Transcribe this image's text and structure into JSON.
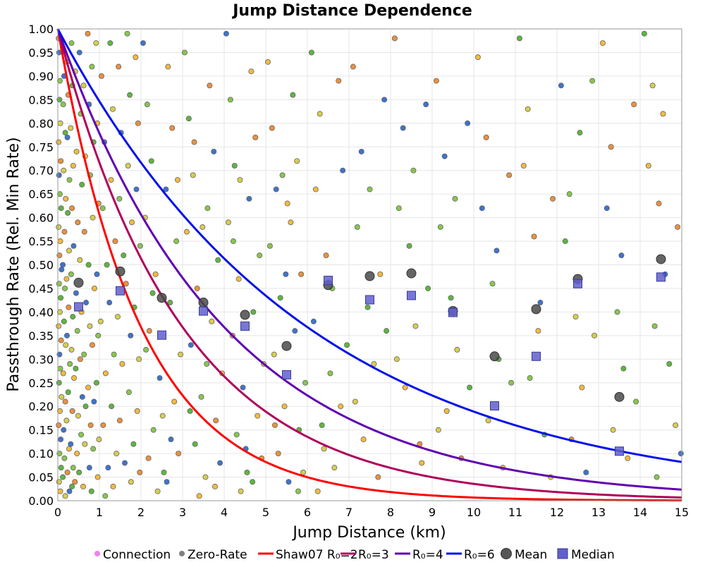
{
  "chart_data": {
    "type": "scatter",
    "title": "Jump Distance Dependence",
    "xlabel": "Jump Distance (km)",
    "ylabel": "Passthrough Rate (Rel. Min Rate)",
    "xlim": [
      0,
      15
    ],
    "ylim": [
      0,
      1
    ],
    "x_ticks": [
      "0",
      "1",
      "2",
      "3",
      "4",
      "5",
      "6",
      "7",
      "8",
      "9",
      "10",
      "11",
      "12",
      "13",
      "14",
      "15"
    ],
    "y_ticks": [
      "0.00",
      "0.05",
      "0.10",
      "0.15",
      "0.20",
      "0.25",
      "0.30",
      "0.35",
      "0.40",
      "0.45",
      "0.50",
      "0.55",
      "0.60",
      "0.65",
      "0.70",
      "0.75",
      "0.80",
      "0.85",
      "0.90",
      "0.95",
      "1.00"
    ],
    "grid": true,
    "legend_position": "bottom",
    "legend": [
      {
        "label": "Connection",
        "marker": "dot",
        "color": "#ee82ee"
      },
      {
        "label": "Zero-Rate",
        "marker": "dot",
        "color": "#808080"
      },
      {
        "label": "Shaw07 R₀=2",
        "marker": "line",
        "color": "#ff0000"
      },
      {
        "label": "R₀=3",
        "marker": "line",
        "color": "#b0005a"
      },
      {
        "label": "R₀=4",
        "marker": "line",
        "color": "#6000b0"
      },
      {
        "label": "R₀=6",
        "marker": "line",
        "color": "#0010ee"
      },
      {
        "label": "Mean",
        "marker": "circle",
        "color": "#505050"
      },
      {
        "label": "Median",
        "marker": "square",
        "color": "#6060cc"
      }
    ],
    "curves": [
      {
        "name": "Shaw07 R₀=2",
        "function": "exp(-x/R0)",
        "R0": 2,
        "color": "#ff0000"
      },
      {
        "name": "R₀=3",
        "function": "exp(-x/R0)",
        "R0": 3,
        "color": "#b0005a"
      },
      {
        "name": "R₀=4",
        "function": "exp(-x/R0)",
        "R0": 4,
        "color": "#6000b0"
      },
      {
        "name": "R₀=6",
        "function": "exp(-x/R0)",
        "R0": 6,
        "color": "#0010ee"
      }
    ],
    "mean": {
      "x": [
        0.5,
        1.5,
        2.5,
        3.5,
        4.5,
        5.5,
        6.5,
        7.5,
        8.5,
        9.5,
        10.5,
        11.5,
        12.5,
        13.5,
        14.5
      ],
      "y": [
        0.462,
        0.486,
        0.43,
        0.42,
        0.394,
        0.328,
        0.457,
        0.476,
        0.482,
        0.402,
        0.306,
        0.406,
        0.47,
        0.22,
        0.512
      ]
    },
    "median": {
      "x": [
        0.5,
        1.5,
        2.5,
        3.5,
        4.5,
        5.5,
        6.5,
        7.5,
        8.5,
        9.5,
        10.5,
        11.5,
        12.5,
        13.5,
        14.5
      ],
      "y": [
        0.411,
        0.445,
        0.351,
        0.402,
        0.37,
        0.267,
        0.467,
        0.426,
        0.435,
        0.399,
        0.201,
        0.306,
        0.46,
        0.105,
        0.474
      ]
    },
    "scatter_colors": [
      "#4caf2a",
      "#d4c83a",
      "#f2b328",
      "#e8862a",
      "#2a64c8",
      "#7ac23a"
    ],
    "scatter_points": [
      [
        0.02,
        0.98
      ],
      [
        0.03,
        0.95
      ],
      [
        0.05,
        0.89
      ],
      [
        0.04,
        0.85
      ],
      [
        0.06,
        0.8
      ],
      [
        0.02,
        0.76
      ],
      [
        0.07,
        0.72
      ],
      [
        0.03,
        0.69
      ],
      [
        0.05,
        0.65
      ],
      [
        0.08,
        0.62
      ],
      [
        0.02,
        0.58
      ],
      [
        0.06,
        0.55
      ],
      [
        0.04,
        0.52
      ],
      [
        0.09,
        0.49
      ],
      [
        0.03,
        0.46
      ],
      [
        0.07,
        0.43
      ],
      [
        0.05,
        0.4
      ],
      [
        0.02,
        0.37
      ],
      [
        0.08,
        0.34
      ],
      [
        0.04,
        0.31
      ],
      [
        0.06,
        0.28
      ],
      [
        0.03,
        0.25
      ],
      [
        0.09,
        0.22
      ],
      [
        0.05,
        0.19
      ],
      [
        0.02,
        0.16
      ],
      [
        0.07,
        0.13
      ],
      [
        0.04,
        0.1
      ],
      [
        0.08,
        0.07
      ],
      [
        0.03,
        0.04
      ],
      [
        0.06,
        0.02
      ],
      [
        0.12,
        0.96
      ],
      [
        0.15,
        0.9
      ],
      [
        0.13,
        0.84
      ],
      [
        0.18,
        0.78
      ],
      [
        0.14,
        0.7
      ],
      [
        0.19,
        0.64
      ],
      [
        0.16,
        0.57
      ],
      [
        0.12,
        0.5
      ],
      [
        0.17,
        0.45
      ],
      [
        0.15,
        0.38
      ],
      [
        0.19,
        0.33
      ],
      [
        0.13,
        0.27
      ],
      [
        0.18,
        0.21
      ],
      [
        0.14,
        0.15
      ],
      [
        0.16,
        0.09
      ],
      [
        0.12,
        0.05
      ],
      [
        0.18,
        0.01
      ],
      [
        0.22,
        0.93
      ],
      [
        0.25,
        0.86
      ],
      [
        0.23,
        0.77
      ],
      [
        0.28,
        0.68
      ],
      [
        0.24,
        0.61
      ],
      [
        0.27,
        0.53
      ],
      [
        0.21,
        0.47
      ],
      [
        0.26,
        0.41
      ],
      [
        0.22,
        0.35
      ],
      [
        0.29,
        0.29
      ],
      [
        0.25,
        0.23
      ],
      [
        0.21,
        0.17
      ],
      [
        0.27,
        0.11
      ],
      [
        0.23,
        0.06
      ],
      [
        0.28,
        0.02
      ],
      [
        0.33,
        0.97
      ],
      [
        0.35,
        0.88
      ],
      [
        0.31,
        0.79
      ],
      [
        0.37,
        0.71
      ],
      [
        0.34,
        0.62
      ],
      [
        0.38,
        0.54
      ],
      [
        0.32,
        0.48
      ],
      [
        0.36,
        0.39
      ],
      [
        0.33,
        0.32
      ],
      [
        0.39,
        0.26
      ],
      [
        0.35,
        0.19
      ],
      [
        0.31,
        0.12
      ],
      [
        0.37,
        0.07
      ],
      [
        0.34,
        0.03
      ],
      [
        0.42,
        0.91
      ],
      [
        0.45,
        0.74
      ],
      [
        0.48,
        0.59
      ],
      [
        0.44,
        0.44
      ],
      [
        0.47,
        0.36
      ],
      [
        0.43,
        0.28
      ],
      [
        0.49,
        0.18
      ],
      [
        0.46,
        0.1
      ],
      [
        0.41,
        0.04
      ],
      [
        0.52,
        0.95
      ],
      [
        0.55,
        0.82
      ],
      [
        0.58,
        0.67
      ],
      [
        0.53,
        0.51
      ],
      [
        0.57,
        0.4
      ],
      [
        0.54,
        0.3
      ],
      [
        0.59,
        0.22
      ],
      [
        0.56,
        0.14
      ],
      [
        0.51,
        0.06
      ],
      [
        0.62,
        0.88
      ],
      [
        0.66,
        0.73
      ],
      [
        0.64,
        0.57
      ],
      [
        0.68,
        0.42
      ],
      [
        0.63,
        0.31
      ],
      [
        0.67,
        0.2
      ],
      [
        0.65,
        0.12
      ],
      [
        0.61,
        0.03
      ],
      [
        0.72,
        0.99
      ],
      [
        0.75,
        0.84
      ],
      [
        0.78,
        0.69
      ],
      [
        0.74,
        0.5
      ],
      [
        0.77,
        0.37
      ],
      [
        0.73,
        0.24
      ],
      [
        0.79,
        0.16
      ],
      [
        0.76,
        0.07
      ],
      [
        0.82,
        0.92
      ],
      [
        0.86,
        0.76
      ],
      [
        0.84,
        0.6
      ],
      [
        0.88,
        0.45
      ],
      [
        0.83,
        0.33
      ],
      [
        0.87,
        0.21
      ],
      [
        0.85,
        0.11
      ],
      [
        0.81,
        0.02
      ],
      [
        0.92,
        0.97
      ],
      [
        0.95,
        0.8
      ],
      [
        0.98,
        0.63
      ],
      [
        0.94,
        0.48
      ],
      [
        0.97,
        0.35
      ],
      [
        0.93,
        0.25
      ],
      [
        0.99,
        0.13
      ],
      [
        0.96,
        0.05
      ],
      [
        1.05,
        0.9
      ],
      [
        1.12,
        0.76
      ],
      [
        1.08,
        0.62
      ],
      [
        1.18,
        0.5
      ],
      [
        1.03,
        0.38
      ],
      [
        1.15,
        0.27
      ],
      [
        1.09,
        0.16
      ],
      [
        1.21,
        0.07
      ],
      [
        1.14,
        0.01
      ],
      [
        1.26,
        0.97
      ],
      [
        1.32,
        0.83
      ],
      [
        1.28,
        0.68
      ],
      [
        1.38,
        0.55
      ],
      [
        1.24,
        0.42
      ],
      [
        1.35,
        0.31
      ],
      [
        1.29,
        0.2
      ],
      [
        1.41,
        0.1
      ],
      [
        1.33,
        0.03
      ],
      [
        1.46,
        0.92
      ],
      [
        1.52,
        0.78
      ],
      [
        1.48,
        0.64
      ],
      [
        1.58,
        0.52
      ],
      [
        1.44,
        0.39
      ],
      [
        1.55,
        0.29
      ],
      [
        1.49,
        0.17
      ],
      [
        1.61,
        0.08
      ],
      [
        1.67,
        0.99
      ],
      [
        1.73,
        0.86
      ],
      [
        1.69,
        0.71
      ],
      [
        1.78,
        0.59
      ],
      [
        1.64,
        0.46
      ],
      [
        1.75,
        0.35
      ],
      [
        1.71,
        0.23
      ],
      [
        1.82,
        0.12
      ],
      [
        1.76,
        0.04
      ],
      [
        1.87,
        0.94
      ],
      [
        1.93,
        0.8
      ],
      [
        1.89,
        0.66
      ],
      [
        1.98,
        0.54
      ],
      [
        1.84,
        0.41
      ],
      [
        1.95,
        0.3
      ],
      [
        1.91,
        0.19
      ],
      [
        1.97,
        0.06
      ],
      [
        2.05,
        0.97
      ],
      [
        2.15,
        0.84
      ],
      [
        2.25,
        0.72
      ],
      [
        2.1,
        0.6
      ],
      [
        2.35,
        0.48
      ],
      [
        2.2,
        0.36
      ],
      [
        2.45,
        0.26
      ],
      [
        2.3,
        0.15
      ],
      [
        2.55,
        0.06
      ],
      [
        2.4,
        0.02
      ],
      [
        2.65,
        0.92
      ],
      [
        2.75,
        0.79
      ],
      [
        2.6,
        0.66
      ],
      [
        2.85,
        0.55
      ],
      [
        2.7,
        0.42
      ],
      [
        2.95,
        0.31
      ],
      [
        2.8,
        0.21
      ],
      [
        2.9,
        0.1
      ],
      [
        2.62,
        0.04
      ],
      [
        2.12,
        0.32
      ],
      [
        2.28,
        0.44
      ],
      [
        2.52,
        0.18
      ],
      [
        2.88,
        0.68
      ],
      [
        2.18,
        0.09
      ],
      [
        2.72,
        0.13
      ],
      [
        3.05,
        0.95
      ],
      [
        3.15,
        0.81
      ],
      [
        3.25,
        0.69
      ],
      [
        3.1,
        0.57
      ],
      [
        3.35,
        0.45
      ],
      [
        3.2,
        0.33
      ],
      [
        3.45,
        0.22
      ],
      [
        3.3,
        0.12
      ],
      [
        3.55,
        0.05
      ],
      [
        3.4,
        0.01
      ],
      [
        3.65,
        0.88
      ],
      [
        3.75,
        0.74
      ],
      [
        3.6,
        0.62
      ],
      [
        3.85,
        0.51
      ],
      [
        3.7,
        0.38
      ],
      [
        3.95,
        0.27
      ],
      [
        3.8,
        0.17
      ],
      [
        3.9,
        0.08
      ],
      [
        3.58,
        0.29
      ],
      [
        3.18,
        0.19
      ],
      [
        3.48,
        0.58
      ],
      [
        3.78,
        0.03
      ],
      [
        3.28,
        0.76
      ],
      [
        4.05,
        0.99
      ],
      [
        4.15,
        0.85
      ],
      [
        4.25,
        0.71
      ],
      [
        4.1,
        0.59
      ],
      [
        4.35,
        0.47
      ],
      [
        4.2,
        0.35
      ],
      [
        4.45,
        0.24
      ],
      [
        4.3,
        0.14
      ],
      [
        4.55,
        0.06
      ],
      [
        4.4,
        0.02
      ],
      [
        4.65,
        0.91
      ],
      [
        4.75,
        0.77
      ],
      [
        4.6,
        0.64
      ],
      [
        4.85,
        0.52
      ],
      [
        4.7,
        0.4
      ],
      [
        4.95,
        0.29
      ],
      [
        4.8,
        0.18
      ],
      [
        4.9,
        0.09
      ],
      [
        4.52,
        0.11
      ],
      [
        4.22,
        0.55
      ],
      [
        4.68,
        0.04
      ],
      [
        4.38,
        0.68
      ],
      [
        5.05,
        0.93
      ],
      [
        5.15,
        0.79
      ],
      [
        5.25,
        0.66
      ],
      [
        5.1,
        0.54
      ],
      [
        5.35,
        0.43
      ],
      [
        5.2,
        0.31
      ],
      [
        5.45,
        0.2
      ],
      [
        5.3,
        0.1
      ],
      [
        5.55,
        0.04
      ],
      [
        5.4,
        0.69
      ],
      [
        5.65,
        0.86
      ],
      [
        5.75,
        0.72
      ],
      [
        5.6,
        0.59
      ],
      [
        5.85,
        0.48
      ],
      [
        5.7,
        0.36
      ],
      [
        5.95,
        0.25
      ],
      [
        5.8,
        0.15
      ],
      [
        5.9,
        0.06
      ],
      [
        5.52,
        0.63
      ],
      [
        5.22,
        0.16
      ],
      [
        5.48,
        0.48
      ],
      [
        5.78,
        0.02
      ],
      [
        6.1,
        0.95
      ],
      [
        6.3,
        0.82
      ],
      [
        6.2,
        0.66
      ],
      [
        6.45,
        0.52
      ],
      [
        6.15,
        0.38
      ],
      [
        6.55,
        0.27
      ],
      [
        6.35,
        0.16
      ],
      [
        6.65,
        0.07
      ],
      [
        6.25,
        0.02
      ],
      [
        6.75,
        0.89
      ],
      [
        6.85,
        0.7
      ],
      [
        6.6,
        0.45
      ],
      [
        6.95,
        0.33
      ],
      [
        6.4,
        0.11
      ],
      [
        6.8,
        0.2
      ],
      [
        7.1,
        0.92
      ],
      [
        7.3,
        0.74
      ],
      [
        7.2,
        0.58
      ],
      [
        7.45,
        0.41
      ],
      [
        7.6,
        0.29
      ],
      [
        7.35,
        0.13
      ],
      [
        7.7,
        0.05
      ],
      [
        7.85,
        0.85
      ],
      [
        7.5,
        0.66
      ],
      [
        7.9,
        0.36
      ],
      [
        7.15,
        0.21
      ],
      [
        7.75,
        0.48
      ],
      [
        8.1,
        0.98
      ],
      [
        8.3,
        0.79
      ],
      [
        8.2,
        0.62
      ],
      [
        8.45,
        0.54
      ],
      [
        8.6,
        0.37
      ],
      [
        8.35,
        0.24
      ],
      [
        8.7,
        0.12
      ],
      [
        8.85,
        0.84
      ],
      [
        8.55,
        0.7
      ],
      [
        8.9,
        0.45
      ],
      [
        8.15,
        0.3
      ],
      [
        8.75,
        0.08
      ],
      [
        9.1,
        0.89
      ],
      [
        9.3,
        0.73
      ],
      [
        9.2,
        0.58
      ],
      [
        9.45,
        0.43
      ],
      [
        9.6,
        0.32
      ],
      [
        9.35,
        0.19
      ],
      [
        9.7,
        0.09
      ],
      [
        9.85,
        0.8
      ],
      [
        9.55,
        0.64
      ],
      [
        9.9,
        0.24
      ],
      [
        9.15,
        0.15
      ],
      [
        10.1,
        0.94
      ],
      [
        10.3,
        0.77
      ],
      [
        10.2,
        0.62
      ],
      [
        10.45,
        0.46
      ],
      [
        10.6,
        0.3
      ],
      [
        10.35,
        0.17
      ],
      [
        10.7,
        0.07
      ],
      [
        10.85,
        0.69
      ],
      [
        10.55,
        0.53
      ],
      [
        10.9,
        0.25
      ],
      [
        11.1,
        0.98
      ],
      [
        11.3,
        0.83
      ],
      [
        11.2,
        0.71
      ],
      [
        11.45,
        0.56
      ],
      [
        11.6,
        0.42
      ],
      [
        11.35,
        0.26
      ],
      [
        11.7,
        0.14
      ],
      [
        11.85,
        0.05
      ],
      [
        11.55,
        0.36
      ],
      [
        11.9,
        0.64
      ],
      [
        12.1,
        0.88
      ],
      [
        12.3,
        0.65
      ],
      [
        12.2,
        0.55
      ],
      [
        12.45,
        0.39
      ],
      [
        12.6,
        0.24
      ],
      [
        12.35,
        0.13
      ],
      [
        12.7,
        0.06
      ],
      [
        12.85,
        0.89
      ],
      [
        12.55,
        0.78
      ],
      [
        12.9,
        0.35
      ],
      [
        13.1,
        0.97
      ],
      [
        13.3,
        0.75
      ],
      [
        13.2,
        0.62
      ],
      [
        13.45,
        0.4
      ],
      [
        13.6,
        0.28
      ],
      [
        13.35,
        0.15
      ],
      [
        13.7,
        0.09
      ],
      [
        13.85,
        0.84
      ],
      [
        13.55,
        0.52
      ],
      [
        13.9,
        0.21
      ],
      [
        14.1,
        0.99
      ],
      [
        14.3,
        0.88
      ],
      [
        14.2,
        0.71
      ],
      [
        14.45,
        0.63
      ],
      [
        14.6,
        0.48
      ],
      [
        14.35,
        0.37
      ],
      [
        14.7,
        0.29
      ],
      [
        14.85,
        0.16
      ],
      [
        14.55,
        0.82
      ],
      [
        14.9,
        0.58
      ],
      [
        14.98,
        0.1
      ],
      [
        14.4,
        0.05
      ]
    ]
  }
}
